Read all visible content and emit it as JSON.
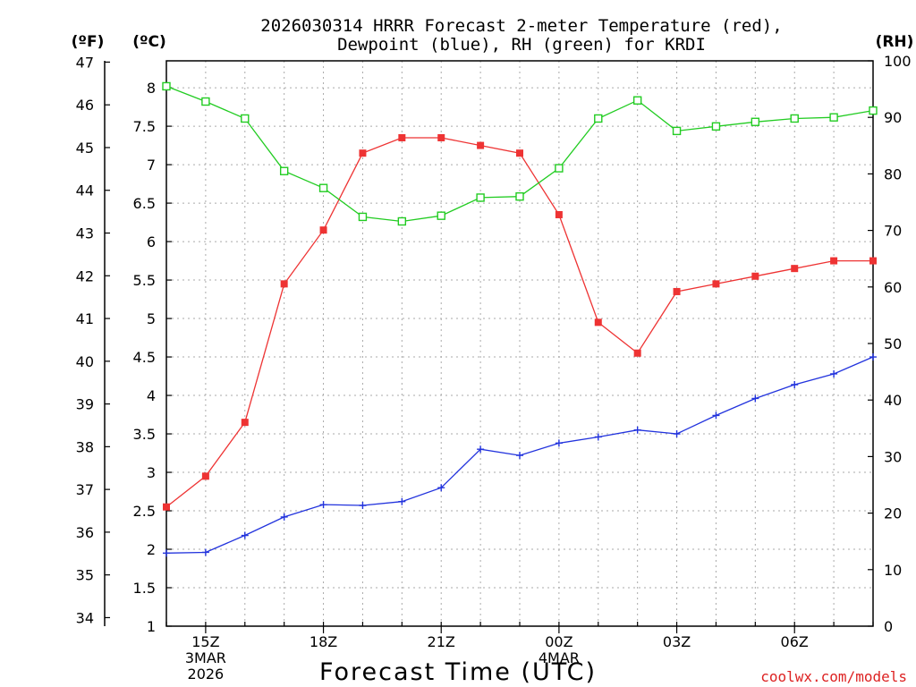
{
  "chart_data": {
    "type": "line",
    "title_line1": "2026030314 HRRR Forecast 2-meter Temperature (red),",
    "title_line2": "Dewpoint (blue), RH (green) for KRDI",
    "xlabel": "Forecast Time (UTC)",
    "left_unit_f": "(ºF)",
    "left_unit_c": "(ºC)",
    "right_unit": "(RH)",
    "credit": "coolwx.com/models",
    "colors": {
      "temperature": "#ee3333",
      "dewpoint": "#2233dd",
      "rh": "#22cc22",
      "grid": "#aaaaaa"
    },
    "x": [
      14,
      15,
      16,
      17,
      18,
      19,
      20,
      21,
      22,
      23,
      24,
      25,
      26,
      27,
      28,
      29,
      30,
      31,
      32
    ],
    "xlim": [
      14,
      32
    ],
    "x_ticks": [
      {
        "x": 15,
        "label": "15Z",
        "sub1": "3MAR",
        "sub2": "2026"
      },
      {
        "x": 18,
        "label": "18Z",
        "sub1": "",
        "sub2": ""
      },
      {
        "x": 21,
        "label": "21Z",
        "sub1": "",
        "sub2": ""
      },
      {
        "x": 24,
        "label": "00Z",
        "sub1": "4MAR",
        "sub2": ""
      },
      {
        "x": 27,
        "label": "03Z",
        "sub1": "",
        "sub2": ""
      },
      {
        "x": 30,
        "label": "06Z",
        "sub1": "",
        "sub2": ""
      }
    ],
    "ylim_c": [
      1,
      8.35
    ],
    "y_ticks_c": [
      "1",
      "1.5",
      "2",
      "2.5",
      "3",
      "3.5",
      "4",
      "4.5",
      "5",
      "5.5",
      "6",
      "6.5",
      "7",
      "7.5",
      "8"
    ],
    "y_ticks_f": [
      "34",
      "35",
      "36",
      "37",
      "38",
      "39",
      "40",
      "41",
      "42",
      "43",
      "44",
      "45",
      "46",
      "47"
    ],
    "ylim_rh": [
      0,
      100
    ],
    "y_ticks_rh": [
      "0",
      "10",
      "20",
      "30",
      "40",
      "50",
      "60",
      "70",
      "80",
      "90",
      "100"
    ],
    "series": [
      {
        "name": "Temperature",
        "unit": "C",
        "marker": "filled-square",
        "values": [
          2.55,
          2.95,
          3.65,
          5.45,
          6.15,
          7.15,
          7.35,
          7.35,
          7.25,
          7.15,
          6.35,
          4.95,
          4.55,
          5.35,
          5.45,
          5.55,
          5.65,
          5.75,
          5.75
        ]
      },
      {
        "name": "Dewpoint",
        "unit": "C",
        "marker": "plus",
        "values": [
          1.95,
          1.96,
          2.18,
          2.42,
          2.58,
          2.57,
          2.62,
          2.8,
          3.3,
          3.22,
          3.38,
          3.46,
          3.55,
          3.5,
          3.74,
          3.96,
          4.14,
          4.28,
          4.5
        ]
      },
      {
        "name": "RH",
        "unit": "%",
        "marker": "open-square",
        "values": [
          95.5,
          92.8,
          89.8,
          80.5,
          77.5,
          72.4,
          71.6,
          72.6,
          75.8,
          76.0,
          81.0,
          89.8,
          93.0,
          87.6,
          88.4,
          89.2,
          89.8,
          90.0,
          91.2
        ]
      }
    ]
  }
}
